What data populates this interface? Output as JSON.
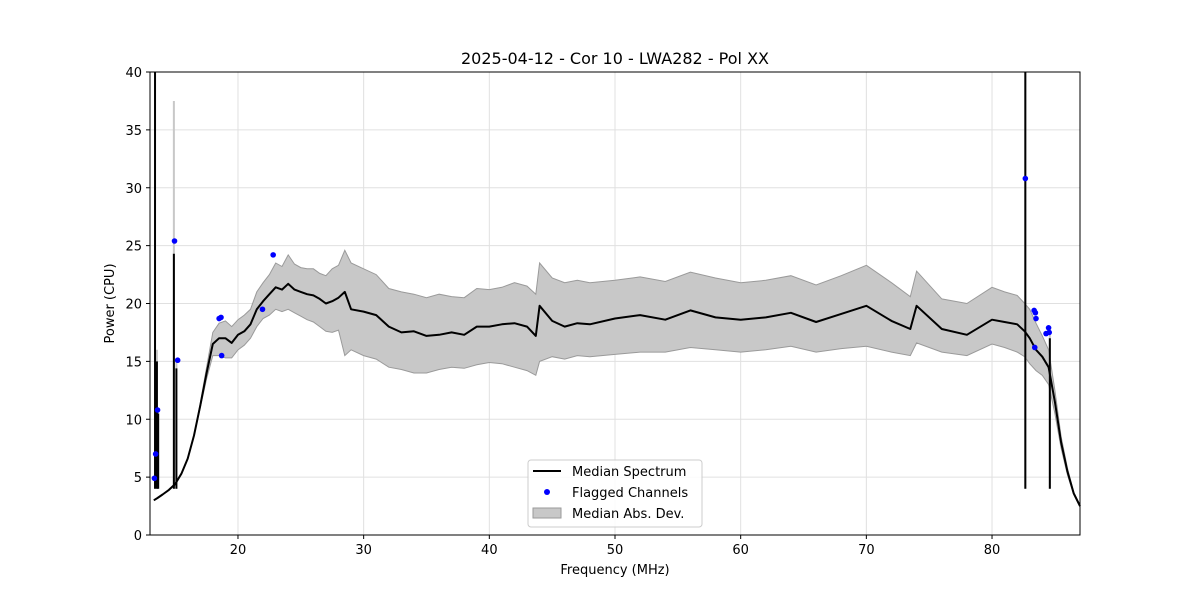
{
  "chart_data": {
    "type": "line",
    "title": "2025-04-12 - Cor 10 - LWA282 - Pol XX",
    "xlabel": "Frequency (MHz)",
    "ylabel": "Power (CPU)",
    "xlim": [
      13.0,
      87.0
    ],
    "ylim": [
      0,
      40
    ],
    "xticks": [
      20,
      30,
      40,
      50,
      60,
      70,
      80
    ],
    "yticks": [
      0,
      5,
      10,
      15,
      20,
      25,
      30,
      35,
      40
    ],
    "grid": true,
    "legend_position": "lower-center",
    "legend": {
      "median": "Median Spectrum",
      "flagged": "Flagged Channels",
      "mad": "Median Abs. Dev."
    },
    "colors": {
      "median": "#000000",
      "flagged": "#0000ff",
      "band_fill": "#c8c8c8",
      "band_edge": "#9a9a9a",
      "grid": "#e0e0e0"
    },
    "series": [
      {
        "name": "Median Spectrum",
        "x": [
          13.3,
          13.6,
          14.0,
          14.5,
          15.0,
          15.5,
          16.0,
          16.5,
          17.0,
          17.5,
          18.0,
          18.5,
          19.0,
          19.5,
          20.0,
          20.5,
          21.0,
          21.5,
          22.0,
          22.5,
          23.0,
          23.5,
          24.0,
          24.5,
          25.0,
          25.5,
          26.0,
          26.5,
          27.0,
          27.5,
          28.0,
          28.5,
          29.0,
          30.0,
          31.0,
          32.0,
          33.0,
          34.0,
          35.0,
          36.0,
          37.0,
          38.0,
          39.0,
          40.0,
          41.0,
          42.0,
          43.0,
          43.7,
          44.0,
          45.0,
          46.0,
          47.0,
          48.0,
          50.0,
          52.0,
          54.0,
          56.0,
          58.0,
          60.0,
          62.0,
          64.0,
          66.0,
          68.0,
          70.0,
          72.0,
          73.5,
          74.0,
          76.0,
          78.0,
          80.0,
          81.0,
          82.0,
          82.6,
          83.0,
          83.5,
          84.0,
          84.5,
          85.0,
          85.5,
          86.0,
          86.5,
          87.0
        ],
        "values": [
          3.0,
          3.2,
          3.5,
          3.9,
          4.4,
          5.3,
          6.6,
          8.6,
          11.2,
          14.0,
          16.5,
          17.0,
          17.0,
          16.6,
          17.3,
          17.6,
          18.2,
          19.5,
          20.2,
          20.8,
          21.4,
          21.2,
          21.7,
          21.2,
          21.0,
          20.8,
          20.7,
          20.4,
          20.0,
          20.2,
          20.5,
          21.0,
          19.5,
          19.3,
          19.0,
          18.0,
          17.5,
          17.6,
          17.2,
          17.3,
          17.5,
          17.3,
          18.0,
          18.0,
          18.2,
          18.3,
          18.0,
          17.2,
          19.8,
          18.5,
          18.0,
          18.3,
          18.2,
          18.7,
          19.0,
          18.6,
          19.4,
          18.8,
          18.6,
          18.8,
          19.2,
          18.4,
          19.1,
          19.8,
          18.5,
          17.8,
          19.8,
          17.8,
          17.3,
          18.6,
          18.4,
          18.2,
          17.6,
          17.0,
          16.0,
          15.4,
          14.5,
          11.5,
          8.0,
          5.5,
          3.6,
          2.5
        ],
        "mad_lower": [
          3.0,
          3.2,
          3.5,
          3.9,
          4.4,
          5.3,
          6.6,
          8.6,
          11.0,
          13.5,
          15.5,
          15.5,
          15.3,
          15.3,
          16.0,
          16.4,
          17.0,
          18.0,
          18.7,
          19.0,
          19.5,
          19.3,
          19.5,
          19.2,
          18.9,
          18.6,
          18.4,
          18.0,
          17.6,
          17.5,
          17.7,
          15.5,
          16.0,
          15.5,
          15.2,
          14.5,
          14.3,
          14.0,
          14.0,
          14.3,
          14.5,
          14.4,
          14.7,
          14.9,
          14.8,
          14.5,
          14.2,
          13.8,
          15.0,
          15.4,
          15.2,
          15.5,
          15.4,
          15.6,
          15.8,
          15.8,
          16.2,
          16.0,
          15.8,
          16.0,
          16.3,
          15.8,
          16.1,
          16.3,
          15.8,
          15.5,
          16.6,
          15.8,
          15.5,
          16.5,
          16.2,
          15.8,
          15.4,
          14.8,
          14.2,
          13.8,
          13.0,
          10.5,
          7.5,
          5.2,
          3.5,
          2.4
        ],
        "mad_upper": [
          3.0,
          3.2,
          3.5,
          3.9,
          4.4,
          5.3,
          6.6,
          8.6,
          11.4,
          14.5,
          17.5,
          18.3,
          18.5,
          18.0,
          18.6,
          19.0,
          19.5,
          21.0,
          21.8,
          22.5,
          23.5,
          23.2,
          24.2,
          23.4,
          23.1,
          23.0,
          23.0,
          22.6,
          22.4,
          23.0,
          23.3,
          24.6,
          23.5,
          23.0,
          22.5,
          21.3,
          21.0,
          20.8,
          20.5,
          20.8,
          20.6,
          20.5,
          21.3,
          21.2,
          21.4,
          21.8,
          21.5,
          20.8,
          23.5,
          22.2,
          21.8,
          22.0,
          21.8,
          22.0,
          22.3,
          21.9,
          22.7,
          22.2,
          21.8,
          22.0,
          22.4,
          21.6,
          22.4,
          23.3,
          21.8,
          20.6,
          22.8,
          20.4,
          20.0,
          21.4,
          21.0,
          20.7,
          20.0,
          19.5,
          18.3,
          17.2,
          16.0,
          12.5,
          8.5,
          5.8,
          3.7,
          2.6
        ]
      },
      {
        "name": "Flagged Channels",
        "x": [
          13.35,
          13.45,
          13.6,
          14.95,
          15.2,
          18.5,
          18.65,
          18.7,
          21.95,
          22.8,
          82.65,
          83.35,
          83.45,
          83.5,
          83.4,
          84.3,
          84.5,
          84.55
        ],
        "values": [
          4.9,
          7.0,
          10.8,
          25.4,
          15.1,
          18.7,
          18.8,
          15.5,
          19.5,
          24.2,
          30.8,
          19.4,
          19.2,
          18.7,
          16.2,
          17.4,
          17.9,
          17.5
        ]
      }
    ],
    "spikes": {
      "x": [
        13.4,
        13.55,
        13.65,
        14.9,
        15.1,
        82.65,
        84.6
      ],
      "peaks": [
        40.0,
        15.0,
        10.5,
        24.3,
        14.4,
        40.0,
        17.0
      ],
      "mad_peaks": [
        40.0,
        16.0,
        11.0,
        37.5,
        15.0,
        40.0,
        17.5
      ]
    }
  }
}
